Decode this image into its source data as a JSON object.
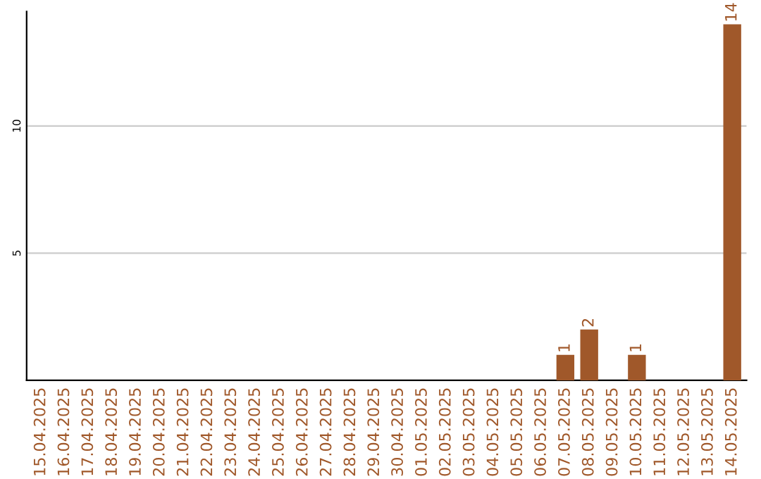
{
  "chart_data": {
    "type": "bar",
    "categories": [
      "15.04.2025",
      "16.04.2025",
      "17.04.2025",
      "18.04.2025",
      "19.04.2025",
      "20.04.2025",
      "21.04.2025",
      "22.04.2025",
      "23.04.2025",
      "24.04.2025",
      "25.04.2025",
      "26.04.2025",
      "27.04.2025",
      "28.04.2025",
      "29.04.2025",
      "30.04.2025",
      "01.05.2025",
      "02.05.2025",
      "03.05.2025",
      "04.05.2025",
      "05.05.2025",
      "06.05.2025",
      "07.05.2025",
      "08.05.2025",
      "09.05.2025",
      "10.05.2025",
      "11.05.2025",
      "12.05.2025",
      "13.05.2025",
      "14.05.2025"
    ],
    "values": [
      0,
      0,
      0,
      0,
      0,
      0,
      0,
      0,
      0,
      0,
      0,
      0,
      0,
      0,
      0,
      0,
      0,
      0,
      0,
      0,
      0,
      0,
      1,
      2,
      0,
      1,
      0,
      0,
      0,
      14
    ],
    "value_labels": [
      null,
      null,
      null,
      null,
      null,
      null,
      null,
      null,
      null,
      null,
      null,
      null,
      null,
      null,
      null,
      null,
      null,
      null,
      null,
      null,
      null,
      null,
      "1",
      "2",
      null,
      "1",
      null,
      null,
      null,
      "14"
    ],
    "color": "#a0582a",
    "ylim": [
      0,
      14.5
    ],
    "yticks": [
      5,
      10
    ],
    "grid": "y",
    "legend": false
  }
}
